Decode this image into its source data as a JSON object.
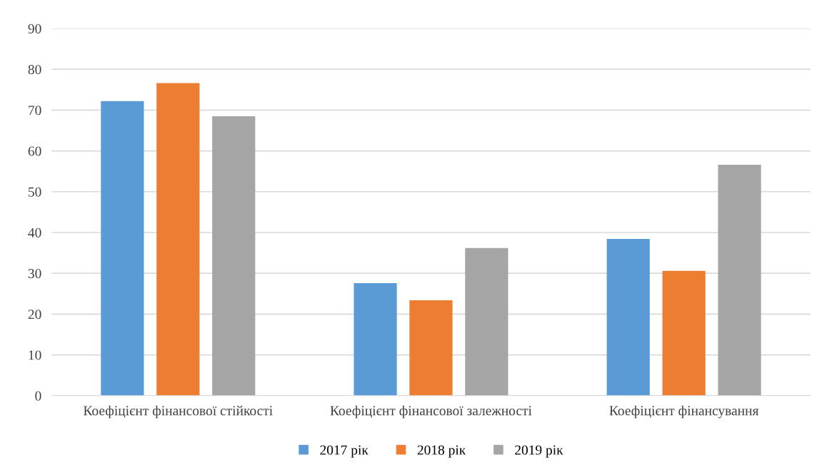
{
  "chart_data": {
    "type": "bar",
    "categories": [
      "Коефіцієнт фінансової стійкості",
      "Коефіцієнт фінансової залежності",
      "Коефіцієнт фінансування"
    ],
    "series": [
      {
        "name": "2017 рік",
        "color": "#5b9bd5",
        "values": [
          72.2,
          27.6,
          38.4
        ]
      },
      {
        "name": "2018 рік",
        "color": "#ed7d31",
        "values": [
          76.6,
          23.4,
          30.6
        ]
      },
      {
        "name": "2019 рік",
        "color": "#a5a5a5",
        "values": [
          68.5,
          36.2,
          56.6
        ]
      }
    ],
    "ylim": [
      0,
      90
    ],
    "yticks": [
      0,
      10,
      20,
      30,
      40,
      50,
      60,
      70,
      80,
      90
    ],
    "grid": "y",
    "legend": "bottom"
  }
}
